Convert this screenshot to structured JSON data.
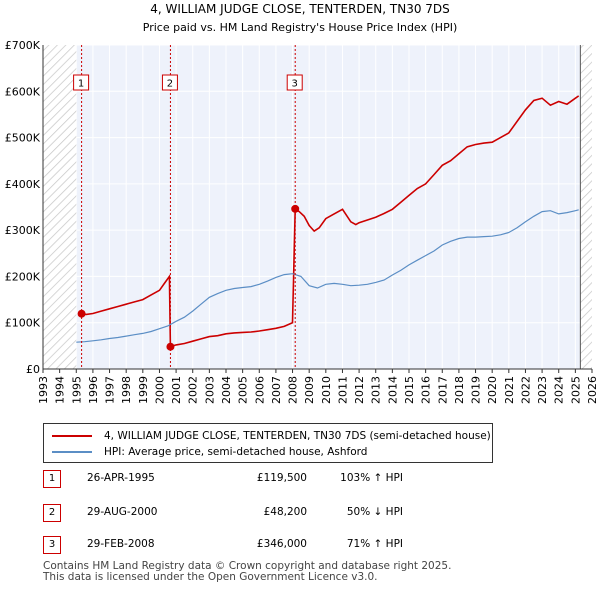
{
  "chart_data": {
    "type": "line",
    "title": "4, WILLIAM JUDGE CLOSE, TENTERDEN, TN30 7DS",
    "subtitle": "Price paid vs. HM Land Registry's House Price Index (HPI)",
    "xlim": [
      1993,
      2026
    ],
    "ylim": [
      0,
      700000
    ],
    "x_ticks": [
      "1993",
      "1994",
      "1995",
      "1996",
      "1997",
      "1998",
      "1999",
      "2000",
      "2001",
      "2002",
      "2003",
      "2004",
      "2005",
      "2006",
      "2007",
      "2008",
      "2009",
      "2010",
      "2011",
      "2012",
      "2013",
      "2014",
      "2015",
      "2016",
      "2017",
      "2018",
      "2019",
      "2020",
      "2021",
      "2022",
      "2023",
      "2024",
      "2025",
      "2026"
    ],
    "y_ticks": [
      {
        "value": 0,
        "label": "£0"
      },
      {
        "value": 100000,
        "label": "£100K"
      },
      {
        "value": 200000,
        "label": "£200K"
      },
      {
        "value": 300000,
        "label": "£300K"
      },
      {
        "value": 400000,
        "label": "£400K"
      },
      {
        "value": 500000,
        "label": "£500K"
      },
      {
        "value": 600000,
        "label": "£600K"
      },
      {
        "value": 700000,
        "label": "£700K"
      }
    ],
    "data_range": [
      1995.0,
      2025.3
    ],
    "series": [
      {
        "name": "4, WILLIAM JUDGE CLOSE, TENTERDEN, TN30 7DS (semi-detached house)",
        "color": "#cc0000",
        "x": [
          1995.32,
          1995.6,
          1996.0,
          1996.5,
          1997.0,
          1997.5,
          1998.0,
          1998.5,
          1999.0,
          1999.5,
          2000.0,
          2000.3,
          2000.6,
          2000.66,
          2001.0,
          2001.5,
          2002.0,
          2002.5,
          2003.0,
          2003.5,
          2004.0,
          2004.5,
          2005.0,
          2005.5,
          2006.0,
          2006.5,
          2007.0,
          2007.5,
          2008.0,
          2008.16,
          2008.4,
          2008.7,
          2009.0,
          2009.3,
          2009.6,
          2010.0,
          2010.5,
          2011.0,
          2011.5,
          2011.8,
          2012.0,
          2012.5,
          2013.0,
          2013.5,
          2014.0,
          2014.5,
          2015.0,
          2015.5,
          2016.0,
          2016.5,
          2017.0,
          2017.5,
          2018.0,
          2018.5,
          2019.0,
          2019.5,
          2020.0,
          2020.5,
          2021.0,
          2021.5,
          2022.0,
          2022.5,
          2023.0,
          2023.5,
          2024.0,
          2024.5,
          2025.0,
          2025.2
        ],
        "values": [
          119500,
          118000,
          120000,
          125000,
          130000,
          135000,
          140000,
          145000,
          150000,
          160000,
          170000,
          185000,
          200000,
          48200,
          52000,
          55000,
          60000,
          65000,
          70000,
          72000,
          76000,
          78000,
          79000,
          80000,
          82000,
          85000,
          88000,
          92000,
          100000,
          346000,
          340000,
          330000,
          310000,
          298000,
          305000,
          325000,
          335000,
          345000,
          318000,
          312000,
          316000,
          322000,
          328000,
          336000,
          345000,
          360000,
          375000,
          390000,
          400000,
          420000,
          440000,
          450000,
          465000,
          480000,
          485000,
          488000,
          490000,
          500000,
          510000,
          535000,
          560000,
          580000,
          585000,
          570000,
          578000,
          572000,
          585000,
          590000
        ]
      },
      {
        "name": "HPI: Average price, semi-detached house, Ashford",
        "color": "#5b8ec5",
        "x": [
          1995.0,
          1995.5,
          1996.0,
          1996.5,
          1997.0,
          1997.5,
          1998.0,
          1998.5,
          1999.0,
          1999.5,
          2000.0,
          2000.5,
          2001.0,
          2001.5,
          2002.0,
          2002.5,
          2003.0,
          2003.5,
          2004.0,
          2004.5,
          2005.0,
          2005.5,
          2006.0,
          2006.5,
          2007.0,
          2007.5,
          2008.0,
          2008.5,
          2009.0,
          2009.5,
          2010.0,
          2010.5,
          2011.0,
          2011.5,
          2012.0,
          2012.5,
          2013.0,
          2013.5,
          2014.0,
          2014.5,
          2015.0,
          2015.5,
          2016.0,
          2016.5,
          2017.0,
          2017.5,
          2018.0,
          2018.5,
          2019.0,
          2019.5,
          2020.0,
          2020.5,
          2021.0,
          2021.5,
          2022.0,
          2022.5,
          2023.0,
          2023.5,
          2024.0,
          2024.5,
          2025.0,
          2025.2
        ],
        "values": [
          58000,
          59000,
          61000,
          63000,
          66000,
          68000,
          71000,
          74000,
          77000,
          81000,
          87000,
          93000,
          103000,
          112000,
          125000,
          140000,
          155000,
          163000,
          170000,
          174000,
          176000,
          178000,
          183000,
          190000,
          198000,
          204000,
          206000,
          200000,
          180000,
          175000,
          183000,
          185000,
          183000,
          180000,
          181000,
          183000,
          187000,
          192000,
          203000,
          213000,
          225000,
          235000,
          245000,
          255000,
          268000,
          276000,
          282000,
          285000,
          285000,
          286000,
          287000,
          290000,
          295000,
          305000,
          318000,
          330000,
          340000,
          342000,
          335000,
          338000,
          342000,
          344000
        ]
      }
    ],
    "sales": [
      {
        "id": "1",
        "x": 1995.32,
        "value": 119500
      },
      {
        "id": "2",
        "x": 2000.66,
        "value": 48200
      },
      {
        "id": "3",
        "x": 2008.16,
        "value": 346000
      }
    ]
  },
  "legend": {
    "property_label": "4, WILLIAM JUDGE CLOSE, TENTERDEN, TN30 7DS (semi-detached house)",
    "hpi_label": "HPI: Average price, semi-detached house, Ashford",
    "property_color": "#cc0000",
    "hpi_color": "#5b8ec5"
  },
  "sales_table": [
    {
      "num": "1",
      "date": "26-APR-1995",
      "price": "£119,500",
      "hpi": "103% ↑ HPI"
    },
    {
      "num": "2",
      "date": "29-AUG-2000",
      "price": "£48,200",
      "hpi": "50% ↓ HPI"
    },
    {
      "num": "3",
      "date": "29-FEB-2008",
      "price": "£346,000",
      "hpi": "71% ↑ HPI"
    }
  ],
  "footer": {
    "line1": "Contains HM Land Registry data © Crown copyright and database right 2025.",
    "line2": "This data is licensed under the Open Government Licence v3.0."
  }
}
